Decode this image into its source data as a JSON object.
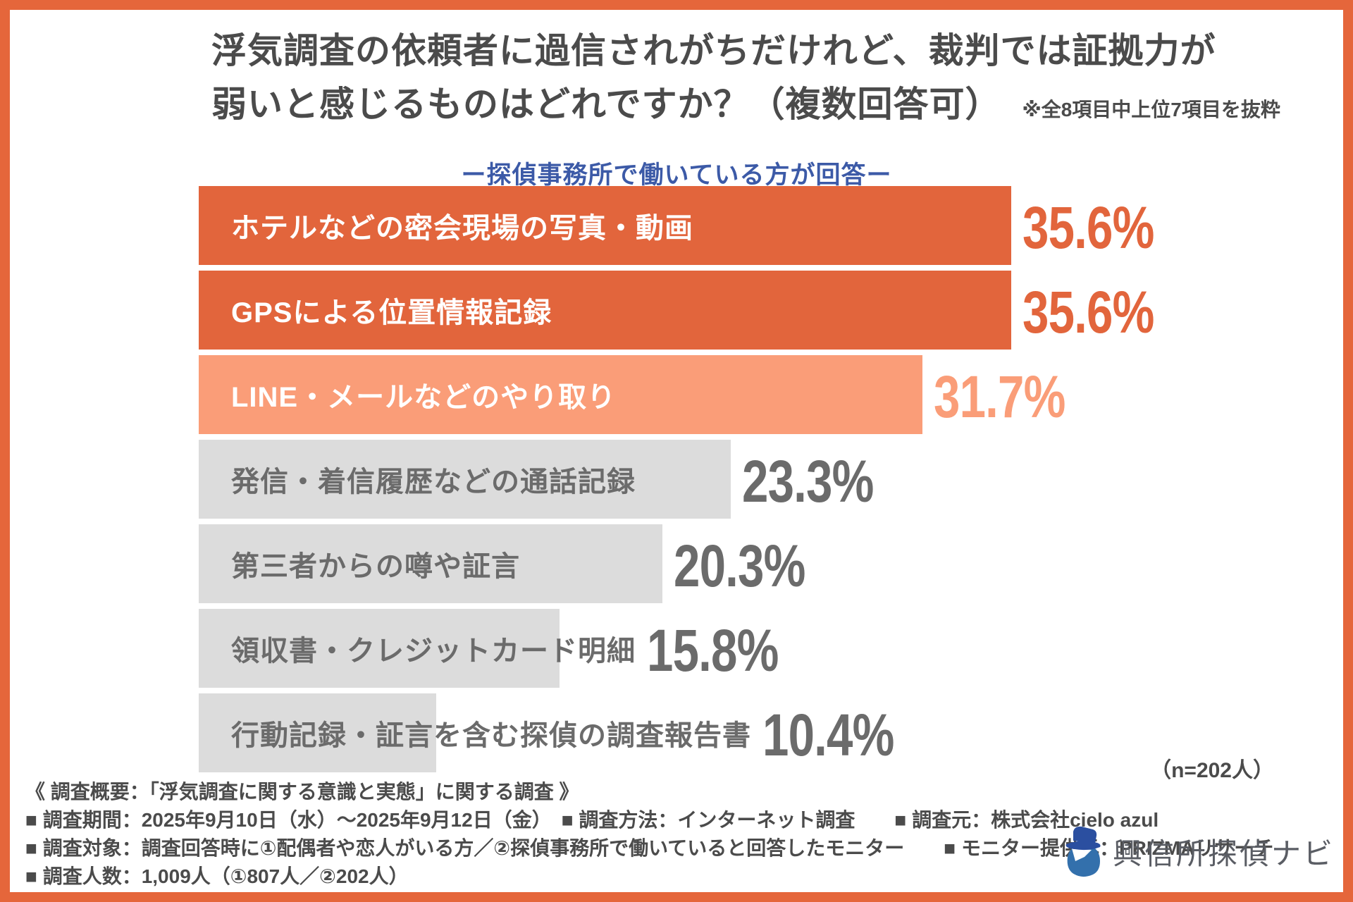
{
  "colors": {
    "frame": "#E5663B",
    "bar_strong": "#E2653C",
    "bar_soft": "#FA9D78",
    "bar_muted": "#DCDCDC",
    "muted_text": "#6B6B6B",
    "title_text": "#4B4B4B",
    "subtitle_blue": "#3C5AA7",
    "logo_hat": "#2B4FA0",
    "logo_coat": "#3370AC",
    "logo_text_color": "#5A5D64"
  },
  "header": {
    "title_line1": "浮気調査の依頼者に過信されがちだけれど、裁判では証拠力が",
    "title_line2": "弱いと感じるものはどれですか？（複数回答可）",
    "note": "※全8項目中上位7項目を抜粋",
    "subtitle": "ー探偵事務所で働いている方が回答ー"
  },
  "chart_data": {
    "type": "bar",
    "orientation": "horizontal",
    "title": "浮気調査の依頼者に過信されがちだけれど、裁判では証拠力が弱いと感じるものはどれですか？（複数回答可）",
    "subtitle": "ー探偵事務所で働いている方が回答ー",
    "unit": "%",
    "xlim": [
      0,
      38
    ],
    "grid": false,
    "legend": false,
    "sample_note": "（n=202人）",
    "categories": [
      "ホテルなどの密会現場の写真・動画",
      "GPSによる位置情報記録",
      "LINE・メールなどのやり取り",
      "発信・着信履歴などの通話記録",
      "第三者からの噂や証言",
      "領収書・クレジットカード明細",
      "行動記録・証言を含む探偵の調査報告書"
    ],
    "values": [
      35.6,
      35.6,
      31.7,
      23.3,
      20.3,
      15.8,
      10.4
    ],
    "rows": [
      {
        "label": "ホテルなどの密会現場の写真・動画",
        "value": 35.6,
        "display": "35.6%",
        "tone": "strong"
      },
      {
        "label": "GPSによる位置情報記録",
        "value": 35.6,
        "display": "35.6%",
        "tone": "strong"
      },
      {
        "label": "LINE・メールなどのやり取り",
        "value": 31.7,
        "display": "31.7%",
        "tone": "soft"
      },
      {
        "label": "発信・着信履歴などの通話記録",
        "value": 23.3,
        "display": "23.3%",
        "tone": "muted"
      },
      {
        "label": "第三者からの噂や証言",
        "value": 20.3,
        "display": "20.3%",
        "tone": "muted"
      },
      {
        "label": "領収書・クレジットカード明細",
        "value": 15.8,
        "display": "15.8%",
        "tone": "muted"
      },
      {
        "label": "行動記録・証言を含む探偵の調査報告書",
        "value": 10.4,
        "display": "10.4%",
        "tone": "muted"
      }
    ]
  },
  "footer": {
    "heading": "《 調査概要：「浮気調査に関する意識と実態」に関する調査 》",
    "lines": [
      "■ 調査期間：2025年9月10日（水）～2025年9月12日（金）　■ 調査方法：インターネット調査　　■ 調査元：株式会社cielo azul",
      "■ 調査対象：調査回答時に①配偶者や恋人がいる方／②探偵事務所で働いていると回答したモニター　　■ モニター提供元：PRIZMAリサーチ",
      "■ 調査人数：1,009人（①807人／②202人）"
    ]
  },
  "logo": {
    "text": "興信所探偵ナビ",
    "icon": "detective-icon"
  }
}
